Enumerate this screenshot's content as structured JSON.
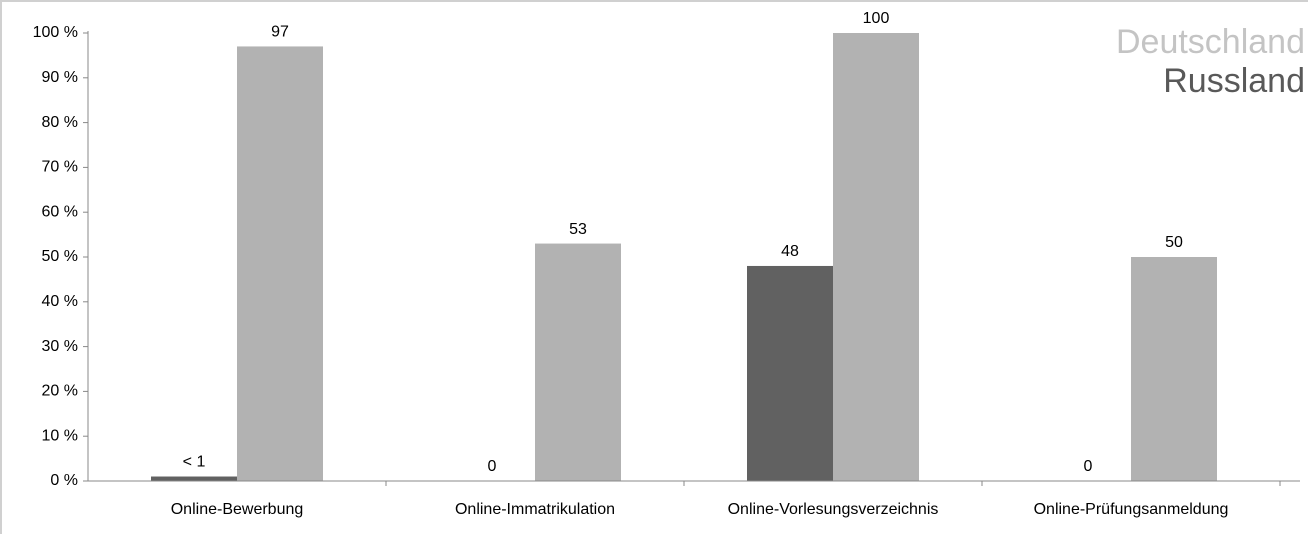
{
  "chart_data": {
    "type": "bar",
    "categories": [
      "Online-Bewerbung",
      "Online-Immatrikulation",
      "Online-Vorlesungsverzeichnis",
      "Online-Prüfungsanmeldung"
    ],
    "series": [
      {
        "name": "Deutschland",
        "color": "#b2b2b2",
        "values": [
          97,
          53,
          100,
          50
        ]
      },
      {
        "name": "Russland",
        "color": "#616161",
        "values": [
          1,
          0,
          48,
          0
        ],
        "value_labels": [
          "< 1",
          "0",
          "48",
          "0"
        ]
      }
    ],
    "legend_colors": [
      "#c4c4c4",
      "#595959"
    ],
    "legend": "top-right",
    "ylim": [
      0,
      100
    ],
    "yticks": [
      {
        "value": 0,
        "label": "0 %"
      },
      {
        "value": 10,
        "label": "10 %"
      },
      {
        "value": 20,
        "label": "20 %"
      },
      {
        "value": 30,
        "label": "30 %"
      },
      {
        "value": 40,
        "label": "40 %"
      },
      {
        "value": 50,
        "label": "50 %"
      },
      {
        "value": 60,
        "label": "60 %"
      },
      {
        "value": 70,
        "label": "70 %"
      },
      {
        "value": 80,
        "label": "80 %"
      },
      {
        "value": 90,
        "label": "90 %"
      },
      {
        "value": 100,
        "label": "100 %"
      }
    ]
  }
}
